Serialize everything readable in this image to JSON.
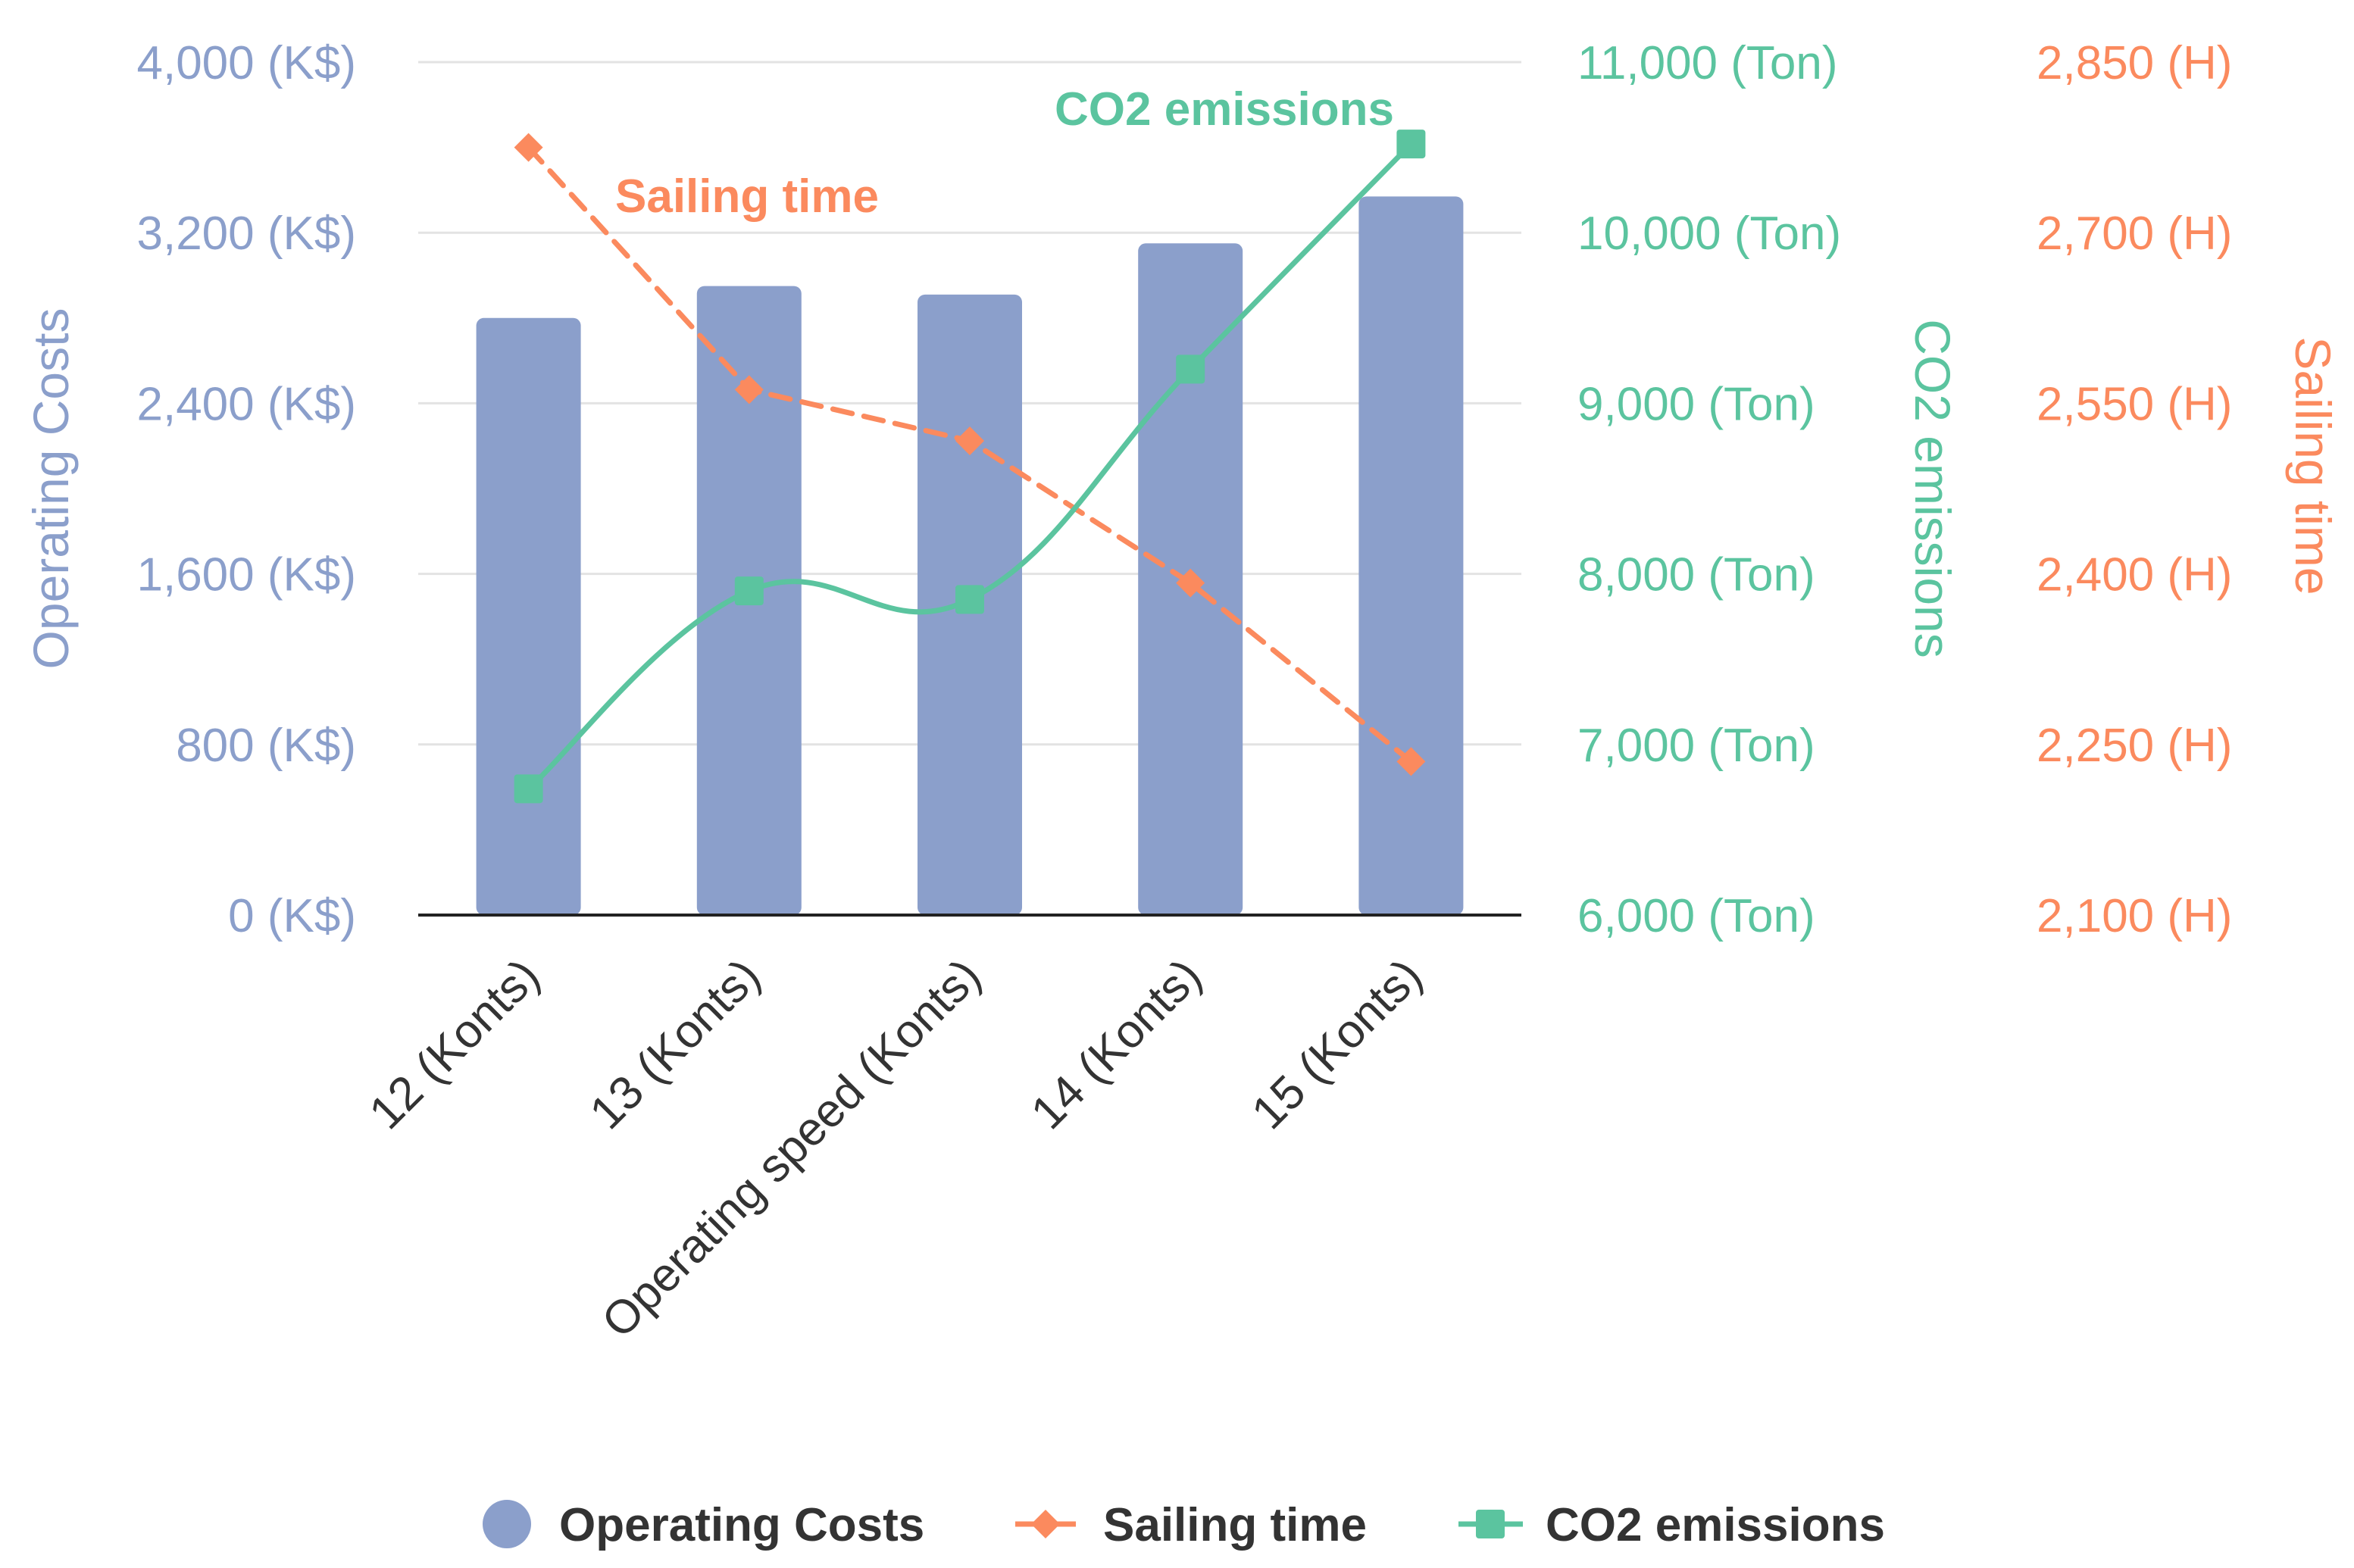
{
  "chart_data": {
    "type": "bar",
    "title": "",
    "categories": [
      "12 (Konts)",
      "13 (Konts)",
      "Operating speed (Konts)",
      "14 (Konts)",
      "15 (Konts)"
    ],
    "series": [
      {
        "name": "Operating Costs",
        "kind": "bar",
        "axis": "left",
        "color": "#8b9fcb",
        "values": [
          2800,
          2950,
          2910,
          3150,
          3370
        ]
      },
      {
        "name": "Sailing time",
        "kind": "line-dashed",
        "axis": "right2",
        "color": "#fb8a5e",
        "marker": "diamond",
        "annotation": "Sailing time",
        "values": [
          2775,
          2562,
          2517,
          2392,
          2235
        ]
      },
      {
        "name": "CO2 emissions",
        "kind": "line-smooth",
        "axis": "right1",
        "color": "#5bc49f",
        "marker": "square",
        "annotation": "CO2 emissions",
        "values": [
          6740,
          7900,
          7850,
          9200,
          10520
        ]
      }
    ],
    "axes": {
      "left": {
        "label": "Operating Costs",
        "min": 0,
        "max": 4000,
        "ticks": [
          0,
          800,
          1600,
          2400,
          3200,
          4000
        ],
        "tick_labels": [
          "0 (K$)",
          "800 (K$)",
          "1,600 (K$)",
          "2,400 (K$)",
          "3,200 (K$)",
          "4,000 (K$)"
        ],
        "color": "#8b9fcb"
      },
      "right1": {
        "label": "CO2 emissions",
        "min": 6000,
        "max": 11000,
        "ticks": [
          6000,
          7000,
          8000,
          9000,
          10000,
          11000
        ],
        "tick_labels": [
          "6,000 (Ton)",
          "7,000 (Ton)",
          "8,000 (Ton)",
          "9,000 (Ton)",
          "10,000 (Ton)",
          "11,000 (Ton)"
        ],
        "color": "#5bc49f"
      },
      "right2": {
        "label": "Sailing time",
        "min": 2100,
        "max": 2850,
        "ticks": [
          2100,
          2250,
          2400,
          2550,
          2700,
          2850
        ],
        "tick_labels": [
          "2,100 (H)",
          "2,250 (H)",
          "2,400 (H)",
          "2,550 (H)",
          "2,700 (H)",
          "2,850 (H)"
        ],
        "color": "#fb8a5e"
      }
    },
    "grid": true,
    "legend": {
      "position": "bottom",
      "items": [
        "Operating Costs",
        "Sailing time",
        "CO2 emissions"
      ]
    }
  }
}
